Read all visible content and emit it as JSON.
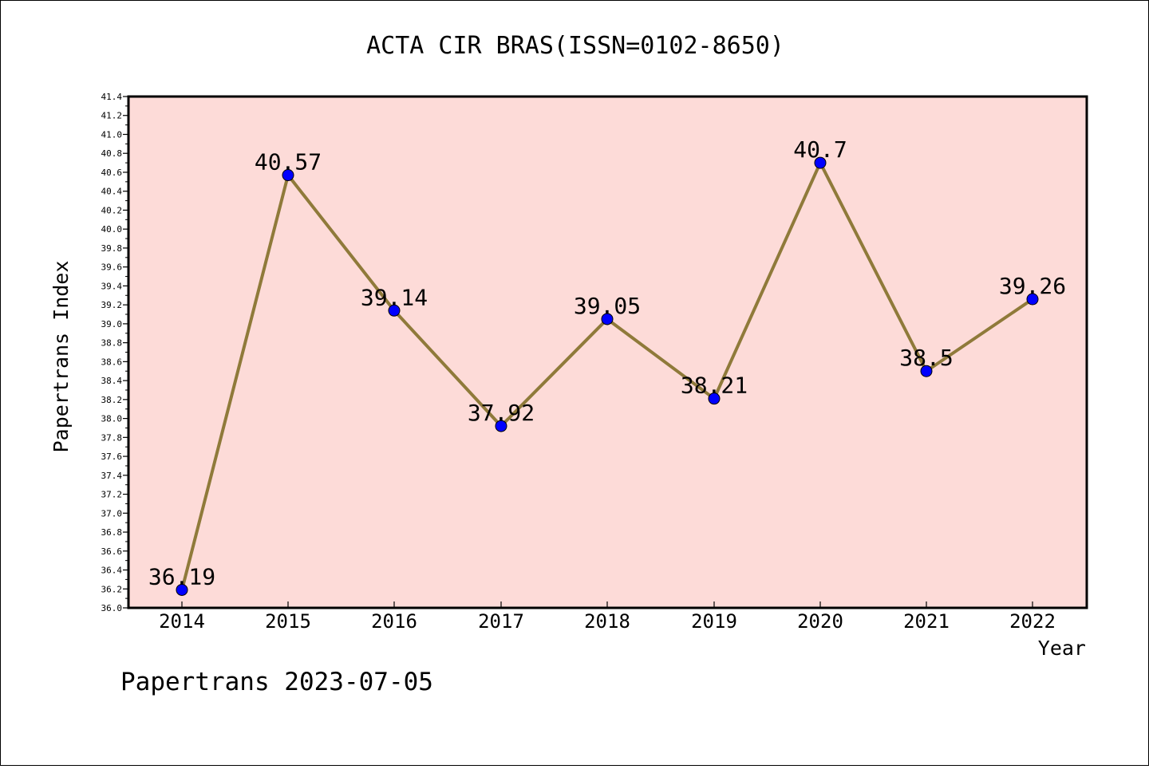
{
  "chart_data": {
    "type": "line",
    "title": "ACTA CIR BRAS(ISSN=0102-8650)",
    "xlabel": "Year",
    "ylabel": "Papertrans Index",
    "categories": [
      "2014",
      "2015",
      "2016",
      "2017",
      "2018",
      "2019",
      "2020",
      "2021",
      "2022"
    ],
    "series": [
      {
        "values": [
          36.19,
          40.57,
          39.14,
          37.92,
          39.05,
          38.21,
          40.7,
          38.5,
          39.26
        ]
      }
    ],
    "data_labels": [
      "36.19",
      "40.57",
      "39.14",
      "37.92",
      "39.05",
      "38.21",
      "40.7",
      "38.5",
      "39.26"
    ],
    "ylim": [
      36.0,
      41.4
    ],
    "y_ticks": [
      "36.0",
      "36.2",
      "36.4",
      "36.6",
      "36.8",
      "37.0",
      "37.2",
      "37.4",
      "37.6",
      "37.8",
      "38.0",
      "38.2",
      "38.4",
      "38.6",
      "38.8",
      "39.0",
      "39.2",
      "39.4",
      "39.6",
      "39.8",
      "40.0",
      "40.2",
      "40.4",
      "40.6",
      "40.8",
      "41.0",
      "41.2",
      "41.4"
    ],
    "grid": false,
    "legend": "none",
    "colors": {
      "plot_background": "#fddbd8",
      "line": "#8f7a3a",
      "marker": "#0000ff"
    }
  },
  "footer": {
    "text": "Papertrans 2023-07-05"
  }
}
